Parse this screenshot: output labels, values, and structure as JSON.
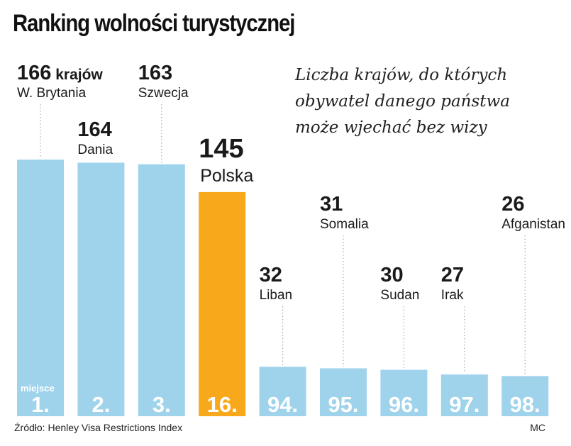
{
  "header": {
    "title": "Ranking wolności turystycznej",
    "subtitle_lines": [
      "Liczba krajów, do których",
      "obywatel danego państwa",
      "może wjechać bez wizy"
    ]
  },
  "chart_data": {
    "type": "bar",
    "title": "Ranking wolności turystycznej",
    "subtitle": "Liczba krajów, do których obywatel danego państwa może wjechać bez wizy",
    "categories": [
      "W. Brytania",
      "Dania",
      "Szwecja",
      "Polska",
      "Liban",
      "Somalia",
      "Sudan",
      "Irak",
      "Afganistan"
    ],
    "values": [
      166,
      164,
      163,
      145,
      32,
      31,
      30,
      27,
      26
    ],
    "ranks": [
      "1.",
      "2.",
      "3.",
      "16.",
      "94.",
      "95.",
      "96.",
      "97.",
      "98."
    ],
    "unit_label": "krajów",
    "rank_label": "miejsce",
    "highlight": "Polska",
    "colors": {
      "bar": "#9fd3ec",
      "highlight": "#f7a81b",
      "rank_text": "#ffffff",
      "leader": "#999999"
    },
    "grid": false,
    "legend": "none"
  },
  "footer": {
    "source": "Źródło: Henley Visa Restrictions Index",
    "author": "MC"
  }
}
